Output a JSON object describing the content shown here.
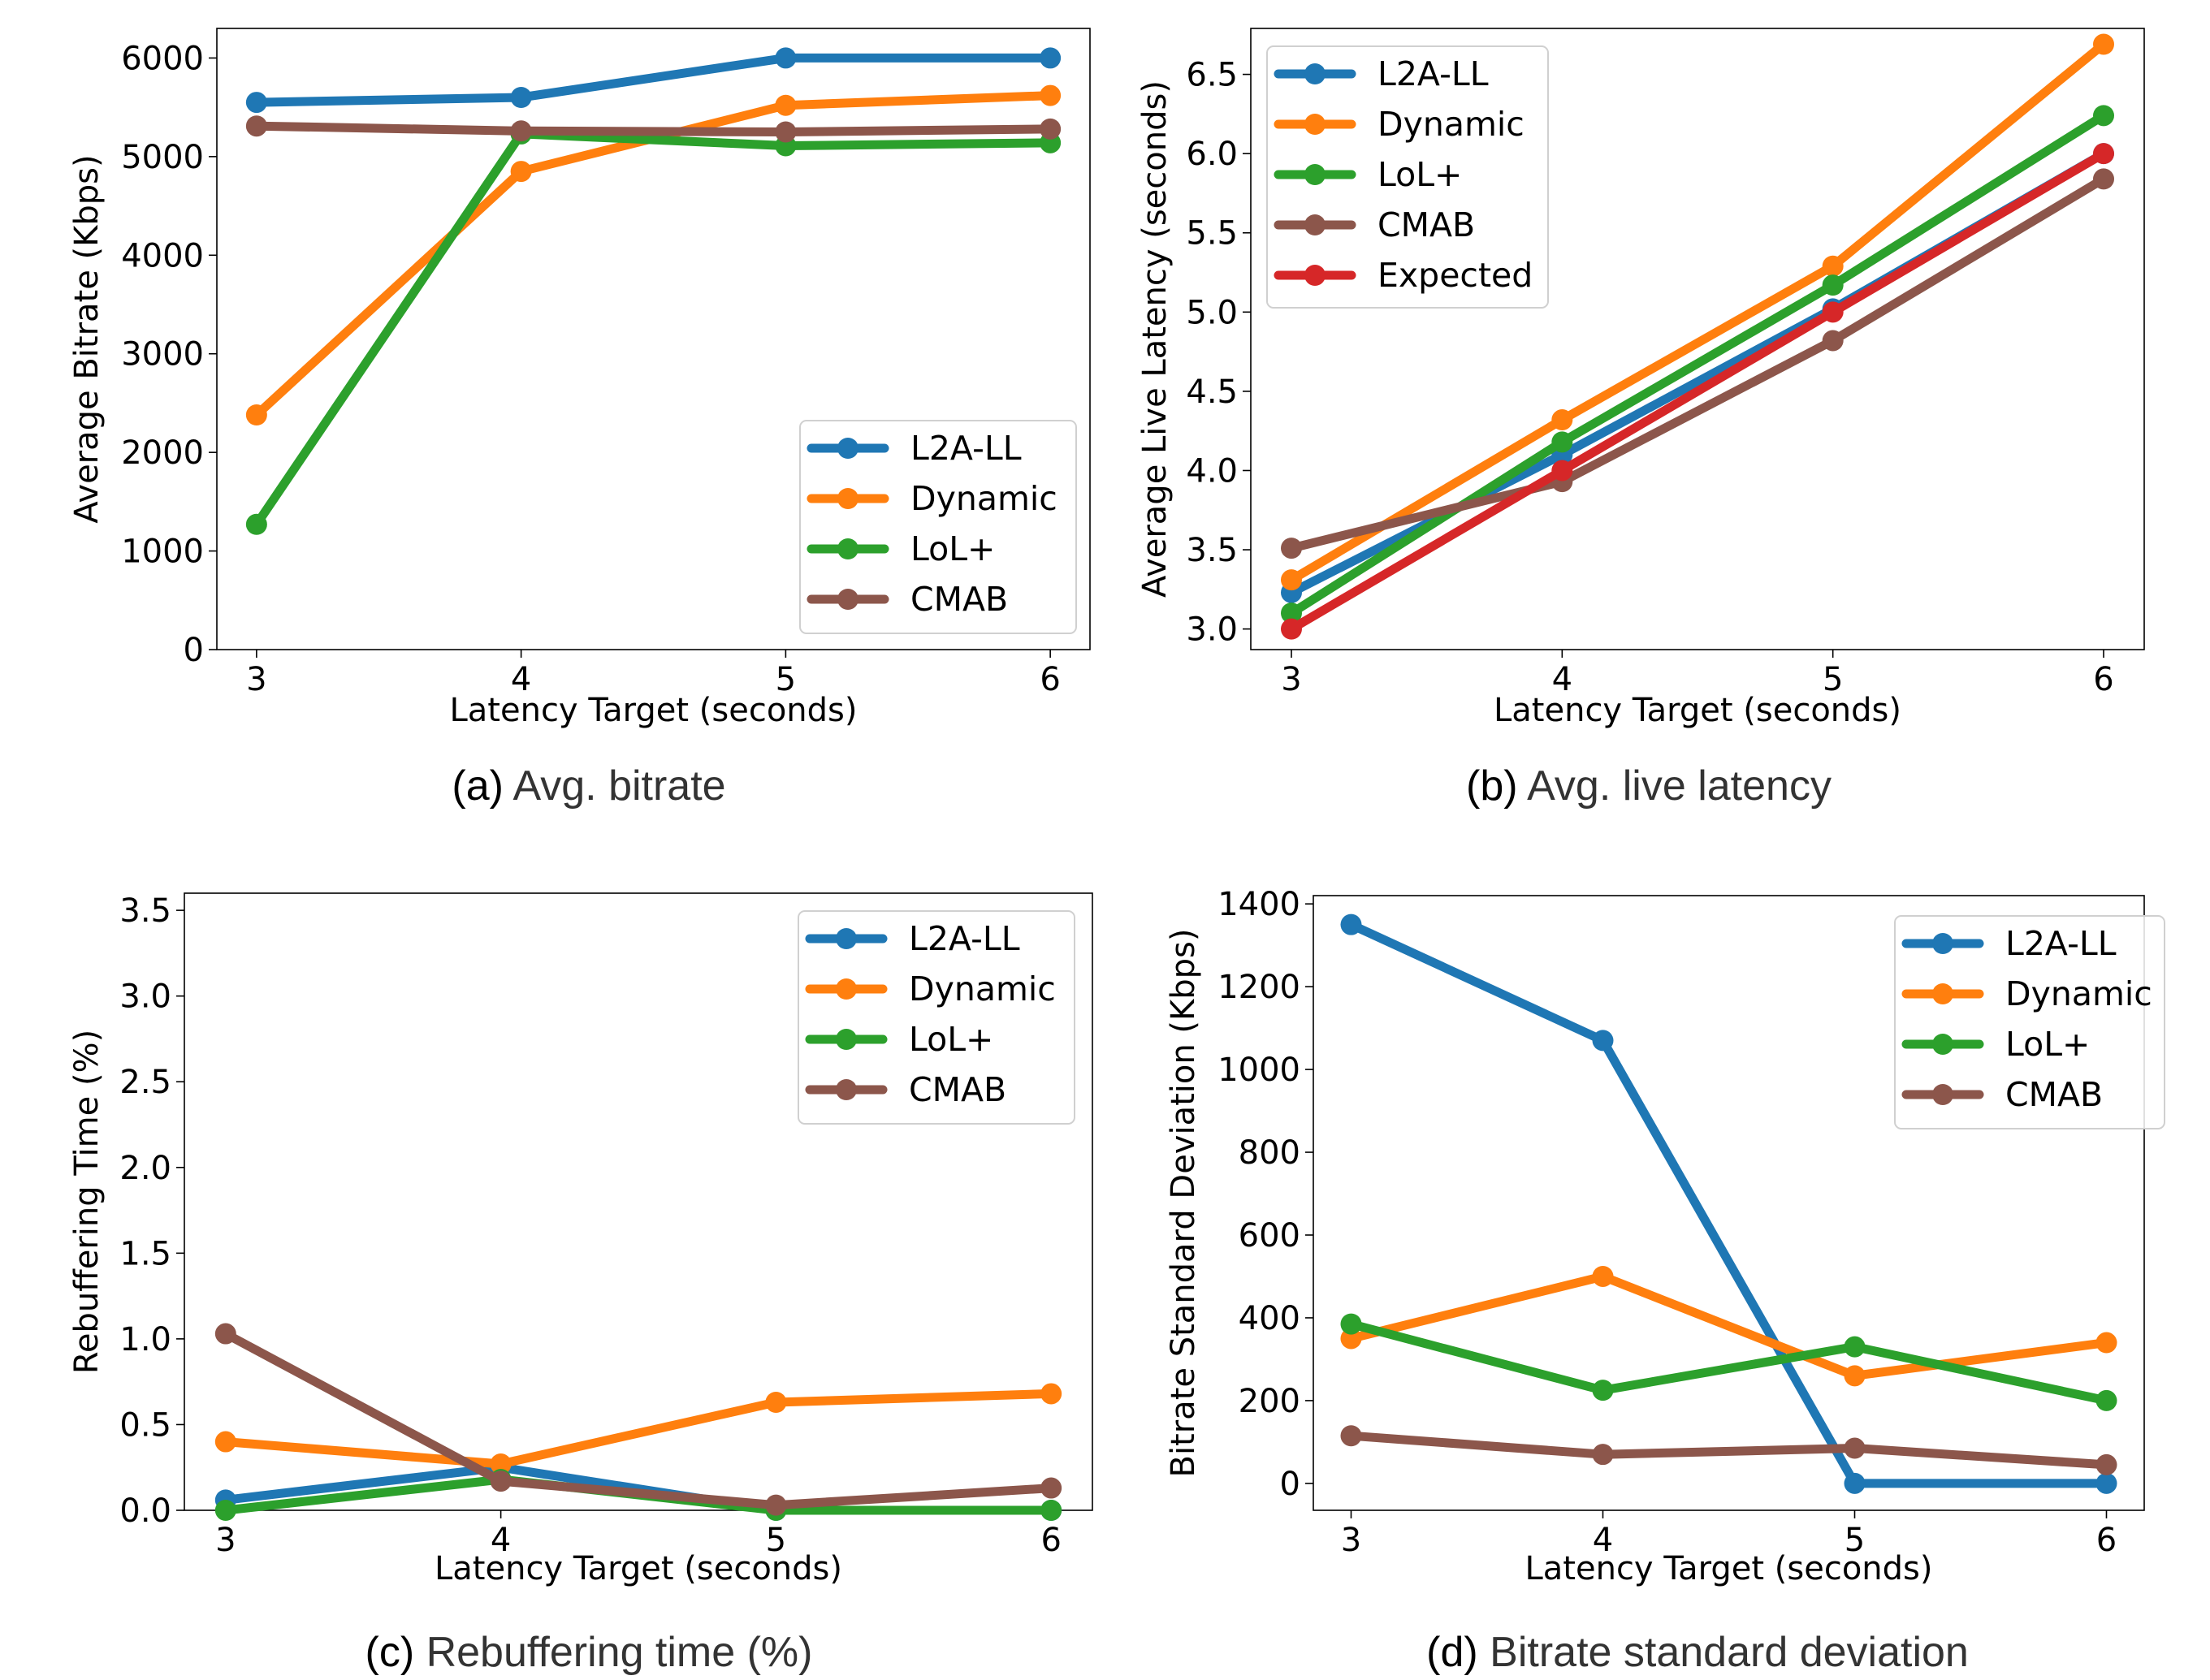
{
  "chart_data": [
    {
      "type": "line",
      "caption_letter": "(a)",
      "caption_text": "Avg. bitrate",
      "xlabel": "Latency Target (seconds)",
      "ylabel": "Average Bitrate (Kbps)",
      "x": [
        3,
        4,
        5,
        6
      ],
      "xlim": [
        2.85,
        6.15
      ],
      "ylim": [
        0,
        6300
      ],
      "yticks": [
        0,
        1000,
        2000,
        3000,
        4000,
        5000,
        6000
      ],
      "ytick_labels": [
        "0",
        "1000",
        "2000",
        "3000",
        "4000",
        "5000",
        "6000"
      ],
      "legend_position": "lower-right",
      "series": [
        {
          "name": "L2A-LL",
          "color": "#1f77b4",
          "values": [
            5550,
            5600,
            6000,
            6000
          ]
        },
        {
          "name": "Dynamic",
          "color": "#ff7f0e",
          "values": [
            2380,
            4850,
            5520,
            5620
          ]
        },
        {
          "name": "LoL+",
          "color": "#2ca02c",
          "values": [
            1270,
            5230,
            5110,
            5140
          ]
        },
        {
          "name": "CMAB",
          "color": "#8c564b",
          "values": [
            5310,
            5260,
            5250,
            5280
          ]
        }
      ]
    },
    {
      "type": "line",
      "caption_letter": "(b)",
      "caption_text": "Avg. live latency",
      "xlabel": "Latency Target (seconds)",
      "ylabel": "Average Live Latency (seconds)",
      "x": [
        3,
        4,
        5,
        6
      ],
      "xlim": [
        2.85,
        6.15
      ],
      "ylim": [
        2.87,
        6.79
      ],
      "yticks": [
        3.0,
        3.5,
        4.0,
        4.5,
        5.0,
        5.5,
        6.0,
        6.5
      ],
      "ytick_labels": [
        "3.0",
        "3.5",
        "4.0",
        "4.5",
        "5.0",
        "5.5",
        "6.0",
        "6.5"
      ],
      "legend_position": "upper-left",
      "series": [
        {
          "name": "L2A-LL",
          "color": "#1f77b4",
          "values": [
            3.23,
            4.1,
            5.02,
            6.0
          ]
        },
        {
          "name": "Dynamic",
          "color": "#ff7f0e",
          "values": [
            3.31,
            4.32,
            5.29,
            6.69
          ]
        },
        {
          "name": "LoL+",
          "color": "#2ca02c",
          "values": [
            3.1,
            4.18,
            5.17,
            6.24
          ]
        },
        {
          "name": "CMAB",
          "color": "#8c564b",
          "values": [
            3.51,
            3.93,
            4.82,
            5.84
          ]
        },
        {
          "name": "Expected",
          "color": "#d62728",
          "values": [
            3.0,
            4.0,
            5.0,
            6.0
          ]
        }
      ]
    },
    {
      "type": "line",
      "caption_letter": "(c)",
      "caption_text": "Rebuffering time (%)",
      "xlabel": "Latency Target (seconds)",
      "ylabel": "Rebuffering Time (%)",
      "x": [
        3,
        4,
        5,
        6
      ],
      "xlim": [
        2.85,
        6.15
      ],
      "ylim": [
        0,
        3.6
      ],
      "yticks": [
        0.0,
        0.5,
        1.0,
        1.5,
        2.0,
        2.5,
        3.0,
        3.5
      ],
      "ytick_labels": [
        "0.0",
        "0.5",
        "1.0",
        "1.5",
        "2.0",
        "2.5",
        "3.0",
        "3.5"
      ],
      "legend_position": "upper-right",
      "series": [
        {
          "name": "L2A-LL",
          "color": "#1f77b4",
          "values": [
            0.06,
            0.25,
            0.0,
            0.0
          ]
        },
        {
          "name": "Dynamic",
          "color": "#ff7f0e",
          "values": [
            0.4,
            0.27,
            0.63,
            0.68
          ]
        },
        {
          "name": "LoL+",
          "color": "#2ca02c",
          "values": [
            0.0,
            0.18,
            0.0,
            0.0
          ]
        },
        {
          "name": "CMAB",
          "color": "#8c564b",
          "values": [
            1.03,
            0.17,
            0.03,
            0.13
          ]
        }
      ]
    },
    {
      "type": "line",
      "caption_letter": "(d)",
      "caption_text": "Bitrate standard deviation",
      "xlabel": "Latency Target (seconds)",
      "ylabel": "Bitrate Standard Deviation (Kbps)",
      "x": [
        3,
        4,
        5,
        6
      ],
      "xlim": [
        2.85,
        6.15
      ],
      "ylim": [
        -65,
        1420
      ],
      "yticks": [
        0,
        200,
        400,
        600,
        800,
        1000,
        1200,
        1400
      ],
      "ytick_labels": [
        "0",
        "200",
        "400",
        "600",
        "800",
        "1000",
        "1200",
        "1400"
      ],
      "legend_position": "upper-right",
      "series": [
        {
          "name": "L2A-LL",
          "color": "#1f77b4",
          "values": [
            1350,
            1070,
            0,
            0
          ]
        },
        {
          "name": "Dynamic",
          "color": "#ff7f0e",
          "values": [
            350,
            500,
            260,
            340
          ]
        },
        {
          "name": "LoL+",
          "color": "#2ca02c",
          "values": [
            385,
            225,
            330,
            200
          ]
        },
        {
          "name": "CMAB",
          "color": "#8c564b",
          "values": [
            115,
            70,
            85,
            45
          ]
        }
      ]
    }
  ]
}
